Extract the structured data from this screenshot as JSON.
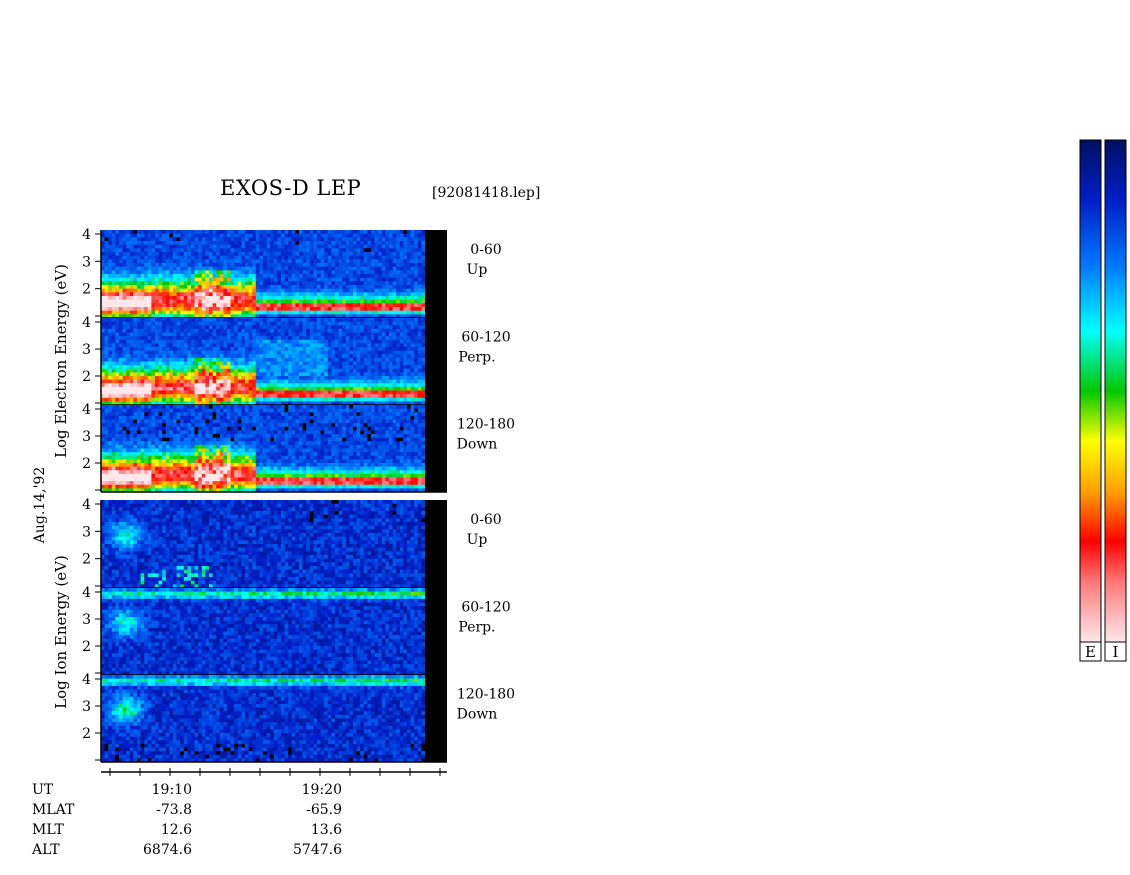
{
  "header": {
    "title": "EXOS-D LEP",
    "filename": "[92081418.lep]"
  },
  "date_label": "Aug.14,'92",
  "groups": [
    {
      "name": "electron",
      "ylabel_parts": [
        "Log",
        "Electron",
        "Energy",
        "(eV)"
      ]
    },
    {
      "name": "ion",
      "ylabel_parts": [
        "Log",
        "Ion",
        "Energy",
        "(eV)"
      ]
    }
  ],
  "panels": [
    {
      "id": "e1",
      "angle": "0-60",
      "dir": "Up"
    },
    {
      "id": "e2",
      "angle": "60-120",
      "dir": "Perp."
    },
    {
      "id": "e3",
      "angle": "120-180",
      "dir": "Down"
    },
    {
      "id": "i1",
      "angle": "0-60",
      "dir": "Up"
    },
    {
      "id": "i2",
      "angle": "60-120",
      "dir": "Perp."
    },
    {
      "id": "i3",
      "angle": "120-180",
      "dir": "Down"
    }
  ],
  "footer": {
    "labels": [
      "UT",
      "MLAT",
      "MLT",
      "ALT"
    ],
    "col1": [
      "19:10",
      "-73.8",
      "12.6",
      "6874.6"
    ],
    "col2": [
      "19:20",
      "-65.9",
      "13.6",
      "5747.6"
    ]
  },
  "colorbar_labels": [
    "E",
    "I"
  ],
  "chart_data": {
    "type": "heatmap",
    "title": "EXOS-D LEP",
    "xlabel": "UT",
    "ylabel": "Log Energy (eV)",
    "x_ticks": [
      "19:10",
      "19:20"
    ],
    "y_ticks": [
      1,
      2,
      3,
      4
    ],
    "ylim": [
      1,
      4
    ],
    "colormap": [
      "#fde8ec",
      "#ff0000",
      "#ffa500",
      "#ffff00",
      "#00c800",
      "#00ffff",
      "#0050ff",
      "#001060"
    ],
    "series": [
      {
        "name": "Electron 0-60 Up"
      },
      {
        "name": "Electron 60-120 Perp."
      },
      {
        "name": "Electron 120-180 Down"
      },
      {
        "name": "Ion 0-60 Up"
      },
      {
        "name": "Ion 60-120 Perp."
      },
      {
        "name": "Ion 120-180 Down"
      }
    ]
  }
}
